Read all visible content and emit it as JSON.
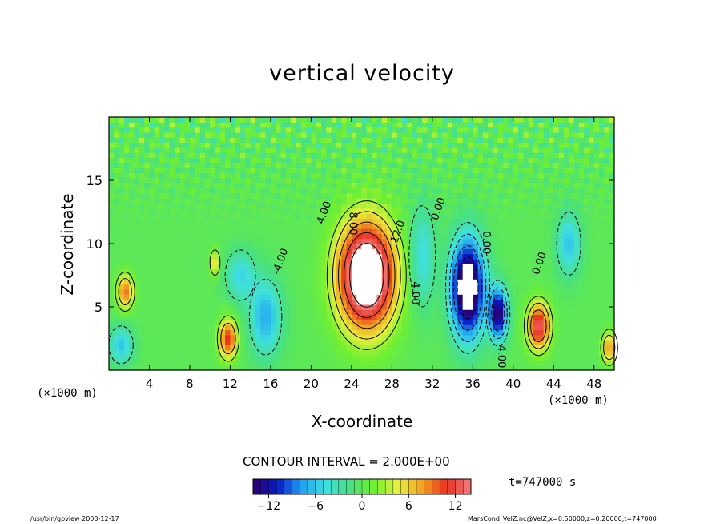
{
  "chart_data": {
    "type": "heatmap",
    "title": "vertical velocity",
    "xlabel": "X-coordinate",
    "ylabel": "Z-coordinate",
    "x_unit": "(×1000 m)",
    "y_unit": "(×1000 m)",
    "xlim": [
      0,
      50
    ],
    "ylim": [
      0,
      20
    ],
    "x_ticks": [
      4,
      8,
      12,
      16,
      20,
      24,
      28,
      32,
      36,
      40,
      44,
      48
    ],
    "y_ticks": [
      5,
      10,
      15
    ],
    "contour_interval_text": "CONTOUR INTERVAL = 2.000E+00",
    "contour_labels": [
      "4.00",
      "8.00",
      "12.0",
      "4.00",
      "0.00",
      "0.00",
      "-4.00",
      "4.00",
      "0.00"
    ],
    "colorbar": {
      "min": -14,
      "max": 14,
      "ticks": [
        "−12",
        "−6",
        "0",
        "6",
        "12"
      ],
      "tick_values": [
        -12,
        -6,
        0,
        6,
        12
      ]
    },
    "features": [
      {
        "x": 25.5,
        "z": 7.5,
        "sx": 2.8,
        "sz": 4.2,
        "value": 20
      },
      {
        "x": 35.5,
        "z": 6.5,
        "sx": 1.6,
        "sz": 3.8,
        "value": -18
      },
      {
        "x": 38.5,
        "z": 4.5,
        "sx": 0.9,
        "sz": 2.0,
        "value": -14
      },
      {
        "x": 31.0,
        "z": 9.0,
        "sx": 1.3,
        "sz": 4.0,
        "value": -5
      },
      {
        "x": 42.5,
        "z": 3.5,
        "sx": 1.1,
        "sz": 1.8,
        "value": 13
      },
      {
        "x": 11.8,
        "z": 2.5,
        "sx": 0.9,
        "sz": 1.5,
        "value": 11
      },
      {
        "x": 1.6,
        "z": 6.2,
        "sx": 0.8,
        "sz": 1.3,
        "value": 9
      },
      {
        "x": 49.5,
        "z": 1.8,
        "sx": 0.7,
        "sz": 1.2,
        "value": 8
      },
      {
        "x": 15.5,
        "z": 4.2,
        "sx": 1.6,
        "sz": 3.0,
        "value": -7
      },
      {
        "x": 13.0,
        "z": 7.5,
        "sx": 1.5,
        "sz": 2.0,
        "value": -5
      },
      {
        "x": 1.2,
        "z": 2.0,
        "sx": 1.2,
        "sz": 1.5,
        "value": -6
      },
      {
        "x": 45.5,
        "z": 10.0,
        "sx": 1.2,
        "sz": 2.5,
        "value": -6
      },
      {
        "x": 10.5,
        "z": 8.5,
        "sx": 0.5,
        "sz": 1.0,
        "value": 6
      }
    ]
  },
  "time_text": "t=747000 s",
  "footer_left": "/usr/bin/gpview   2008-12-17",
  "footer_right": "MarsCond_VelZ.nc@VelZ,x=0:50000,z=0:20000,t=747000",
  "colors": {
    "colormap": [
      "#2a0070",
      "#0a18c8",
      "#20a0f0",
      "#40e0e0",
      "#48e080",
      "#70f030",
      "#e8f040",
      "#f0a020",
      "#e83020",
      "#f08080",
      "#ffffff"
    ]
  }
}
